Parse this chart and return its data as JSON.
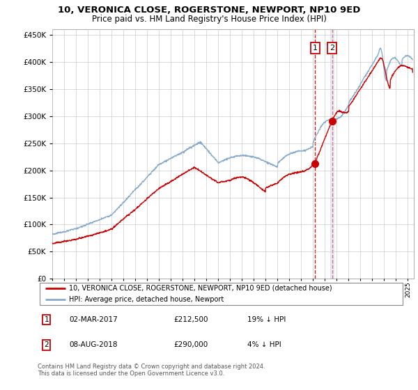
{
  "title": "10, VERONICA CLOSE, ROGERSTONE, NEWPORT, NP10 9ED",
  "subtitle": "Price paid vs. HM Land Registry's House Price Index (HPI)",
  "legend_label_red": "10, VERONICA CLOSE, ROGERSTONE, NEWPORT, NP10 9ED (detached house)",
  "legend_label_blue": "HPI: Average price, detached house, Newport",
  "annotation1_label": "1",
  "annotation1_date": "02-MAR-2017",
  "annotation1_price": "£212,500",
  "annotation1_hpi": "19% ↓ HPI",
  "annotation2_label": "2",
  "annotation2_date": "08-AUG-2018",
  "annotation2_price": "£290,000",
  "annotation2_hpi": "4% ↓ HPI",
  "footer": "Contains HM Land Registry data © Crown copyright and database right 2024.\nThis data is licensed under the Open Government Licence v3.0.",
  "sale1_year": 2017.17,
  "sale1_price": 212500,
  "sale2_year": 2018.6,
  "sale2_price": 290000,
  "xlim": [
    1995,
    2025.5
  ],
  "ylim": [
    0,
    460000
  ],
  "yticks": [
    0,
    50000,
    100000,
    150000,
    200000,
    250000,
    300000,
    350000,
    400000,
    450000
  ],
  "red_color": "#cc0000",
  "blue_color": "#88aacc",
  "vline1_color": "#cc0000",
  "vline2_color": "#aabbdd",
  "box_color": "#cc0000",
  "background_color": "#ffffff",
  "grid_color": "#cccccc"
}
